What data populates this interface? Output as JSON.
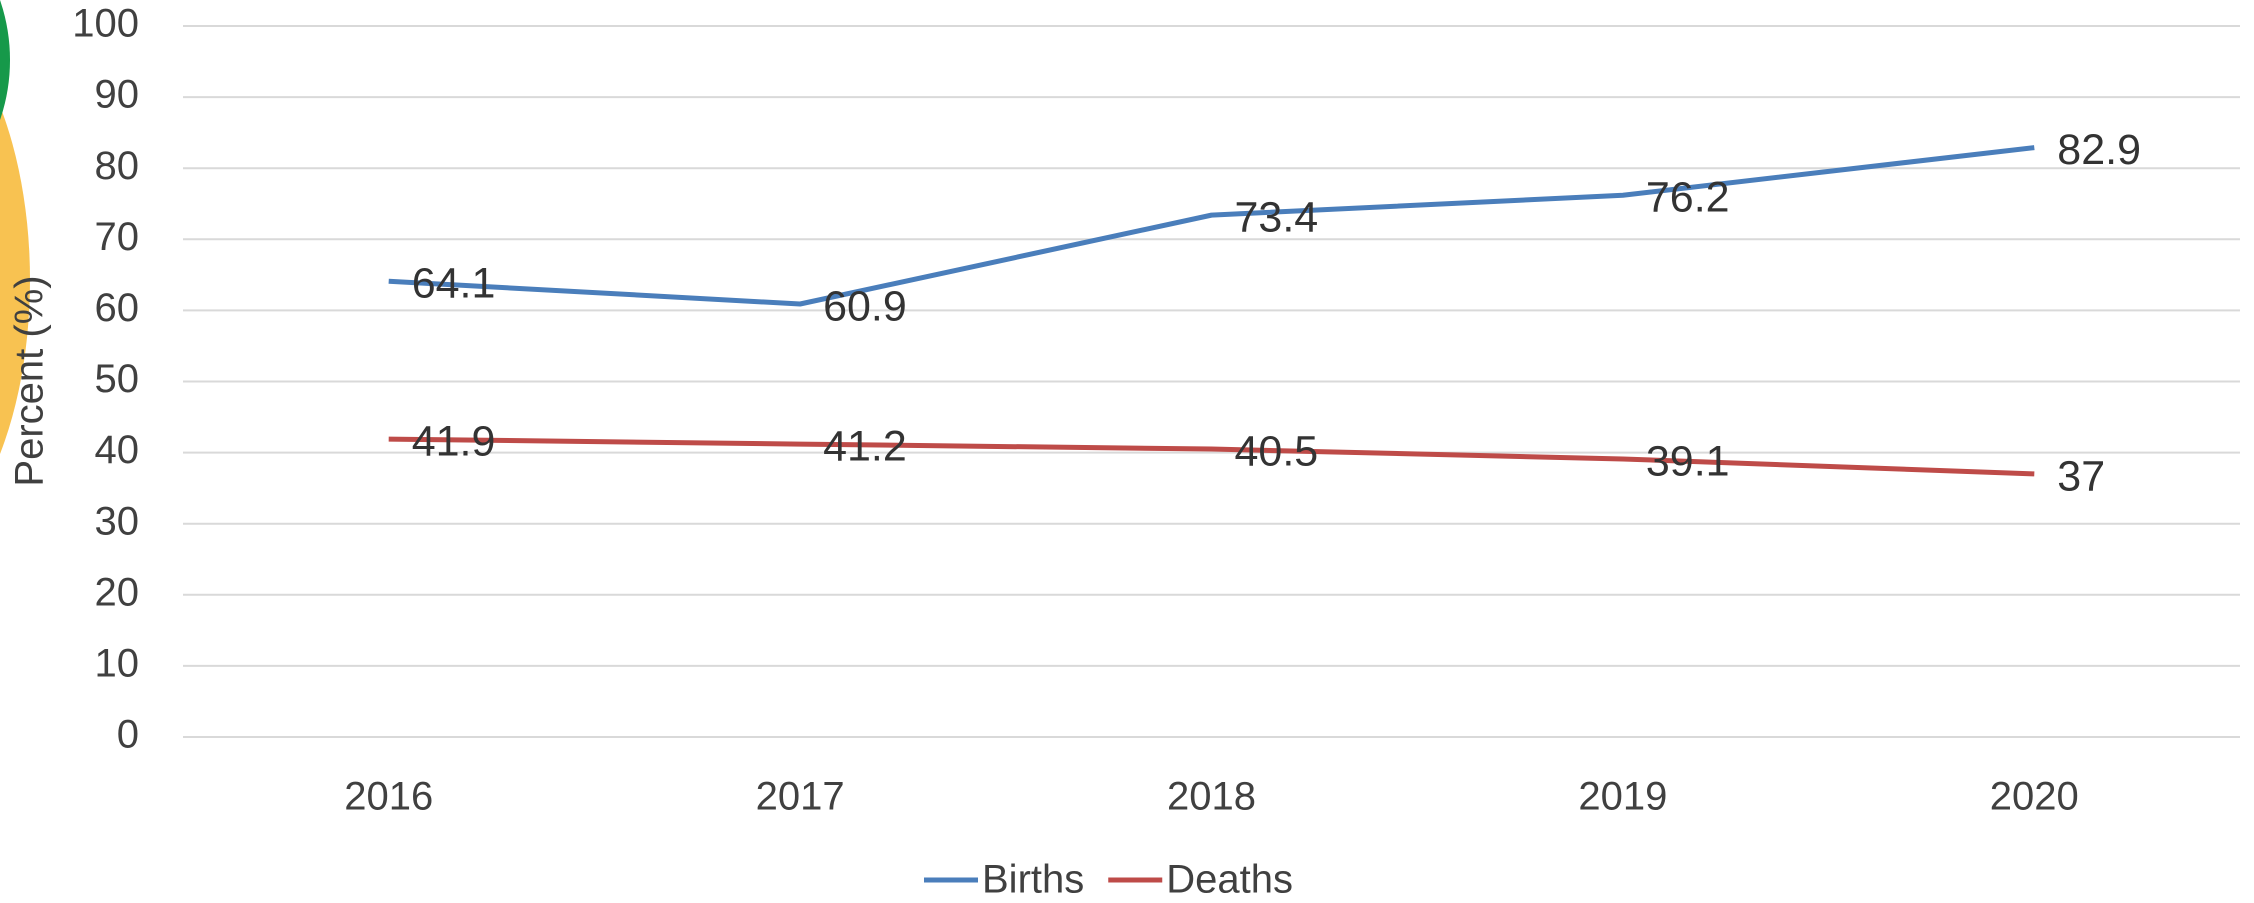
{
  "chart_data": {
    "type": "line",
    "y_label": "Percent (%)",
    "categories": [
      "2016",
      "2017",
      "2018",
      "2019",
      "2020"
    ],
    "series": [
      {
        "name": "Births",
        "color": "#4a7ebb",
        "values": [
          64.1,
          60.9,
          73.4,
          76.2,
          82.9
        ]
      },
      {
        "name": "Deaths",
        "color": "#be4b48",
        "values": [
          41.9,
          41.2,
          40.5,
          39.1,
          37
        ]
      }
    ],
    "ylim": [
      0,
      100
    ],
    "yticks": [
      0,
      10,
      20,
      30,
      40,
      50,
      60,
      70,
      80,
      90,
      100
    ],
    "grid": true,
    "legend": "bottom",
    "data_labels": true
  }
}
